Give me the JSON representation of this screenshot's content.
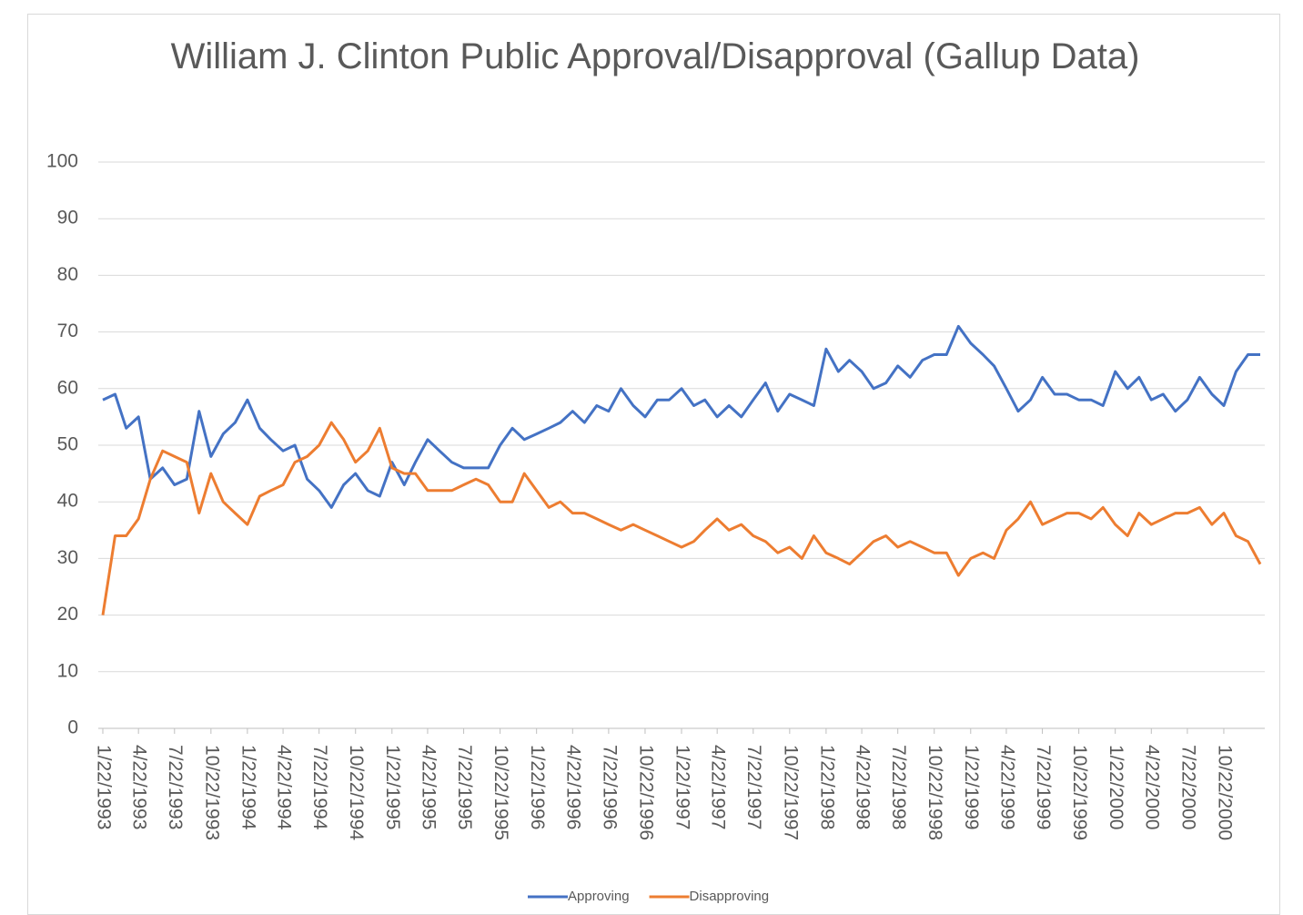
{
  "chart_data": {
    "type": "line",
    "title": "William J. Clinton Public Approval/Disapproval (Gallup Data)",
    "x": [
      "1/22/1993",
      "2/22/1993",
      "3/22/1993",
      "4/22/1993",
      "5/22/1993",
      "6/22/1993",
      "7/22/1993",
      "8/22/1993",
      "9/22/1993",
      "10/22/1993",
      "11/22/1993",
      "12/22/1993",
      "1/22/1994",
      "2/22/1994",
      "3/22/1994",
      "4/22/1994",
      "5/22/1994",
      "6/22/1994",
      "7/22/1994",
      "8/22/1994",
      "9/22/1994",
      "10/22/1994",
      "11/22/1994",
      "12/22/1994",
      "1/22/1995",
      "2/22/1995",
      "3/22/1995",
      "4/22/1995",
      "5/22/1995",
      "6/22/1995",
      "7/22/1995",
      "8/22/1995",
      "9/22/1995",
      "10/22/1995",
      "11/22/1995",
      "12/22/1995",
      "1/22/1996",
      "2/22/1996",
      "3/22/1996",
      "4/22/1996",
      "5/22/1996",
      "6/22/1996",
      "7/22/1996",
      "8/22/1996",
      "9/22/1996",
      "10/22/1996",
      "11/22/1996",
      "12/22/1996",
      "1/22/1997",
      "2/22/1997",
      "3/22/1997",
      "4/22/1997",
      "5/22/1997",
      "6/22/1997",
      "7/22/1997",
      "8/22/1997",
      "9/22/1997",
      "10/22/1997",
      "11/22/1997",
      "12/22/1997",
      "1/22/1998",
      "2/22/1998",
      "3/22/1998",
      "4/22/1998",
      "5/22/1998",
      "6/22/1998",
      "7/22/1998",
      "8/22/1998",
      "9/22/1998",
      "10/22/1998",
      "11/22/1998",
      "12/22/1998",
      "1/22/1999",
      "2/22/1999",
      "3/22/1999",
      "4/22/1999",
      "5/22/1999",
      "6/22/1999",
      "7/22/1999",
      "8/22/1999",
      "9/22/1999",
      "10/22/1999",
      "11/22/1999",
      "12/22/1999",
      "1/22/2000",
      "2/22/2000",
      "3/22/2000",
      "4/22/2000",
      "5/22/2000",
      "6/22/2000",
      "7/22/2000",
      "8/22/2000",
      "9/22/2000",
      "10/22/2000",
      "11/22/2000",
      "12/22/2000",
      "1/22/2001"
    ],
    "series": [
      {
        "name": "Approving",
        "color": "#4472c4",
        "values": [
          58,
          59,
          53,
          55,
          44,
          46,
          43,
          44,
          56,
          48,
          52,
          54,
          58,
          53,
          51,
          49,
          50,
          44,
          42,
          39,
          43,
          45,
          42,
          41,
          47,
          43,
          47,
          51,
          49,
          47,
          46,
          46,
          46,
          50,
          53,
          51,
          52,
          53,
          54,
          56,
          54,
          57,
          56,
          60,
          57,
          55,
          58,
          58,
          60,
          57,
          58,
          55,
          57,
          55,
          58,
          61,
          56,
          59,
          58,
          57,
          67,
          63,
          65,
          63,
          60,
          61,
          64,
          62,
          65,
          66,
          66,
          71,
          68,
          66,
          64,
          60,
          56,
          58,
          62,
          59,
          59,
          58,
          58,
          57,
          63,
          60,
          62,
          58,
          59,
          56,
          58,
          62,
          59,
          57,
          63,
          66,
          66
        ]
      },
      {
        "name": "Disapproving",
        "color": "#ed7d31",
        "values": [
          20,
          34,
          34,
          37,
          44,
          49,
          48,
          47,
          38,
          45,
          40,
          38,
          36,
          41,
          42,
          43,
          47,
          48,
          50,
          54,
          51,
          47,
          49,
          53,
          46,
          45,
          45,
          42,
          42,
          42,
          43,
          44,
          43,
          40,
          40,
          45,
          42,
          39,
          40,
          38,
          38,
          37,
          36,
          35,
          36,
          35,
          34,
          33,
          32,
          33,
          35,
          37,
          35,
          36,
          34,
          33,
          31,
          32,
          30,
          34,
          31,
          30,
          29,
          31,
          33,
          34,
          32,
          33,
          32,
          31,
          31,
          27,
          30,
          31,
          30,
          35,
          37,
          40,
          36,
          37,
          38,
          38,
          37,
          39,
          36,
          34,
          38,
          36,
          37,
          38,
          38,
          39,
          36,
          38,
          34,
          33,
          29
        ]
      }
    ],
    "xlim": [
      "1/22/1993",
      "1/22/2001"
    ],
    "xticks": [
      "1/22/1993",
      "4/22/1993",
      "7/22/1993",
      "10/22/1993",
      "1/22/1994",
      "4/22/1994",
      "7/22/1994",
      "10/22/1994",
      "1/22/1995",
      "4/22/1995",
      "7/22/1995",
      "10/22/1995",
      "1/22/1996",
      "4/22/1996",
      "7/22/1996",
      "10/22/1996",
      "1/22/1997",
      "4/22/1997",
      "7/22/1997",
      "10/22/1997",
      "1/22/1998",
      "4/22/1998",
      "7/22/1998",
      "10/22/1998",
      "1/22/1999",
      "4/22/1999",
      "7/22/1999",
      "10/22/1999",
      "1/22/2000",
      "4/22/2000",
      "7/22/2000",
      "10/22/2000"
    ],
    "ylim": [
      0,
      100
    ],
    "yticks": [
      0,
      10,
      20,
      30,
      40,
      50,
      60,
      70,
      80,
      90,
      100
    ],
    "grid": true,
    "legend": "bottom"
  }
}
